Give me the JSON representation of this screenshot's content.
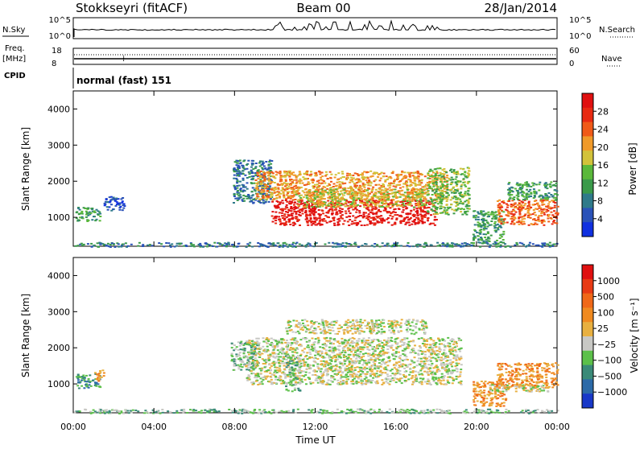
{
  "header": {
    "station": "Stokkseyri (fitACF)",
    "beam": "Beam 00",
    "date": "28/Jan/2014"
  },
  "top_panels": {
    "nsky_label": "N.Sky",
    "nsky_ticks": [
      "10^5",
      "10^0"
    ],
    "nsearch_label": "N.Search",
    "nsearch_ticks": [
      "10^5",
      "10^0"
    ],
    "freq_label": "Freq.",
    "freq_unit": "[MHz]",
    "freq_ticks": [
      "18",
      "8"
    ],
    "nave_label": "Nave",
    "nave_ticks": [
      "60",
      "0"
    ],
    "cpid_label": "CPID",
    "cpid_value": "normal (fast) 151"
  },
  "chart_data": [
    {
      "type": "heatmap",
      "name": "power",
      "ylabel": "Slant Range [km]",
      "xlabel": "Time UT",
      "xlim": [
        0,
        24
      ],
      "ylim": [
        200,
        4500
      ],
      "x_ticks": [
        "00:00",
        "04:00",
        "08:00",
        "12:00",
        "16:00",
        "20:00",
        "00:00"
      ],
      "y_ticks": [
        "1000",
        "2000",
        "3000",
        "4000"
      ],
      "colorbar": {
        "label": "Power [dB]",
        "ticks": [
          "4",
          "8",
          "12",
          "16",
          "20",
          "24",
          "28"
        ],
        "colors": [
          "#1030e0",
          "#2a52b8",
          "#2f7a8a",
          "#3a9a4a",
          "#5ab83a",
          "#d2c23a",
          "#f09a2a",
          "#f05a18",
          "#e82a12",
          "#e01010"
        ]
      },
      "regions": [
        {
          "t0": 0.1,
          "t1": 1.3,
          "r0": 900,
          "r1": 1300,
          "level": 3
        },
        {
          "t0": 1.5,
          "t1": 2.5,
          "r0": 1200,
          "r1": 1600,
          "level": 1
        },
        {
          "t0": 7.9,
          "t1": 9.8,
          "r0": 1400,
          "r1": 2600,
          "level": 2
        },
        {
          "t0": 9.0,
          "t1": 18.5,
          "r0": 1500,
          "r1": 2300,
          "level": 6
        },
        {
          "t0": 9.8,
          "t1": 18.0,
          "r0": 800,
          "r1": 1500,
          "level": 9
        },
        {
          "t0": 11.0,
          "t1": 17.5,
          "r0": 1300,
          "r1": 1800,
          "level": 5
        },
        {
          "t0": 17.5,
          "t1": 19.6,
          "r0": 1100,
          "r1": 2400,
          "level": 4
        },
        {
          "t0": 19.8,
          "t1": 21.3,
          "r0": 300,
          "r1": 1200,
          "level": 3
        },
        {
          "t0": 21.0,
          "t1": 24.0,
          "r0": 800,
          "r1": 1500,
          "level": 7
        },
        {
          "t0": 21.5,
          "t1": 24.0,
          "r0": 1500,
          "r1": 2000,
          "level": 3
        },
        {
          "t0": 0.0,
          "t1": 24.0,
          "r0": 200,
          "r1": 320,
          "level": 2
        }
      ]
    },
    {
      "type": "heatmap",
      "name": "velocity",
      "ylabel": "Slant Range [km]",
      "xlabel": "Time UT",
      "xlim": [
        0,
        24
      ],
      "ylim": [
        200,
        4500
      ],
      "x_ticks": [
        "00:00",
        "04:00",
        "08:00",
        "12:00",
        "16:00",
        "20:00",
        "00:00"
      ],
      "y_ticks": [
        "1000",
        "2000",
        "3000",
        "4000"
      ],
      "colorbar": {
        "label": "Velocity [m s⁻¹]",
        "ticks": [
          "1000",
          "500",
          "100",
          "25",
          "−25",
          "−100",
          "−500",
          "−1000"
        ],
        "colors": [
          "#1838c8",
          "#2c6aa8",
          "#3a8a78",
          "#5cc04a",
          "#c8c8c4",
          "#e8b040",
          "#f08a20",
          "#f06818",
          "#e83a14",
          "#e01010"
        ]
      },
      "regions": [
        {
          "t0": 0.1,
          "t1": 1.3,
          "r0": 900,
          "r1": 1300,
          "level": 2
        },
        {
          "t0": 1.0,
          "t1": 1.5,
          "r0": 1100,
          "r1": 1400,
          "level": 6
        },
        {
          "t0": 7.8,
          "t1": 9.2,
          "r0": 1400,
          "r1": 2200,
          "level": 3
        },
        {
          "t0": 8.5,
          "t1": 19.2,
          "r0": 1000,
          "r1": 2300,
          "level": 4
        },
        {
          "t0": 10.5,
          "t1": 17.5,
          "r0": 2400,
          "r1": 2800,
          "level": 4
        },
        {
          "t0": 10.5,
          "t1": 11.2,
          "r0": 800,
          "r1": 1800,
          "level": 3
        },
        {
          "t0": 19.8,
          "t1": 21.5,
          "r0": 400,
          "r1": 1100,
          "level": 6
        },
        {
          "t0": 21.0,
          "t1": 24.0,
          "r0": 900,
          "r1": 1600,
          "level": 6
        },
        {
          "t0": 20.5,
          "t1": 23.5,
          "r0": 800,
          "r1": 1000,
          "level": 4
        },
        {
          "t0": 0.0,
          "t1": 24.0,
          "r0": 200,
          "r1": 320,
          "level": 3
        }
      ]
    }
  ]
}
